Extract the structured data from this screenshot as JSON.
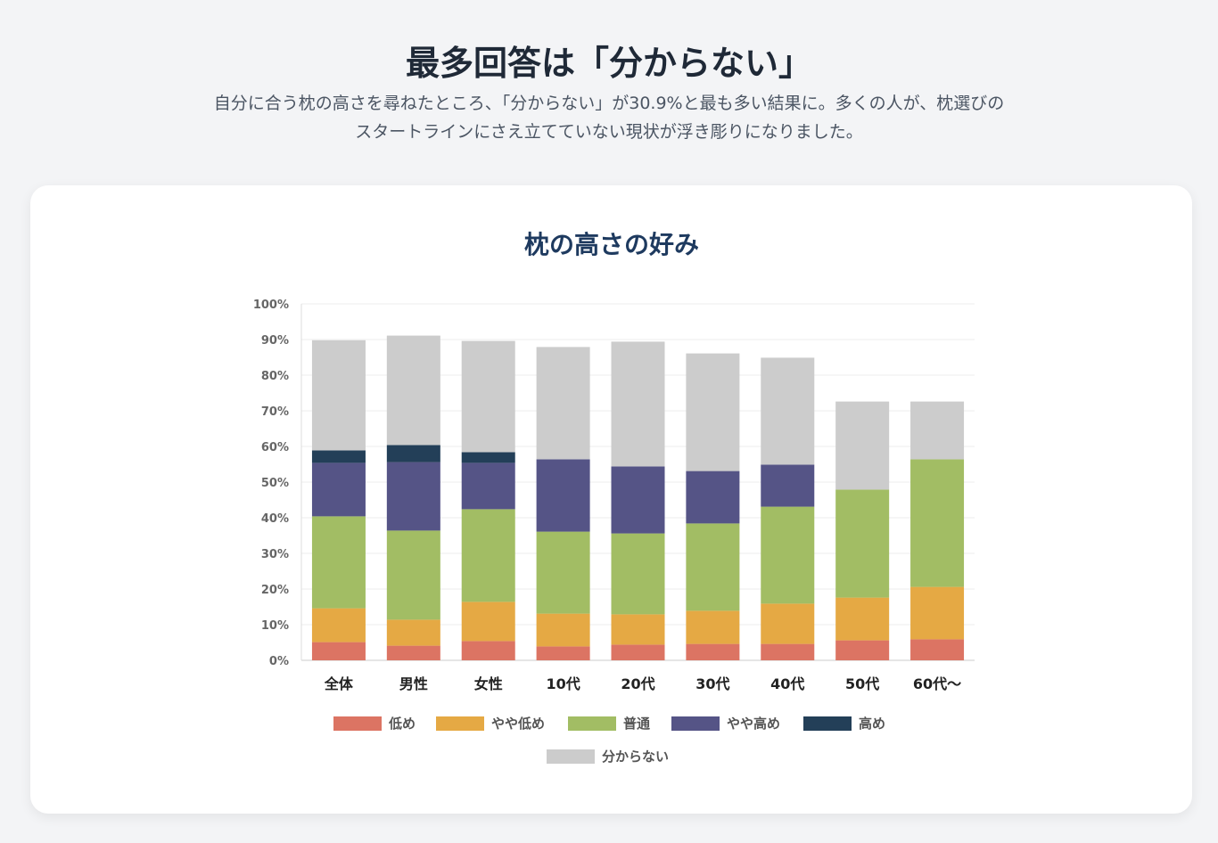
{
  "header": {
    "title": "最多回答は「分からない」",
    "description": "自分に合う枕の高さを尋ねたところ、「分からない」が30.9%と最も多い結果に。多くの人が、枕選びのスタートラインにさえ立てていない現状が浮き彫りになりました。"
  },
  "chart_data": {
    "type": "bar",
    "stacked": true,
    "title": "枕の高さの好み",
    "xlabel": "",
    "ylabel": "",
    "ylim": [
      0,
      100
    ],
    "yticks": [
      "0%",
      "10%",
      "20%",
      "30%",
      "40%",
      "50%",
      "60%",
      "70%",
      "80%",
      "90%",
      "100%"
    ],
    "grid": true,
    "legend_position": "bottom",
    "categories": [
      "全体",
      "男性",
      "女性",
      "10代",
      "20代",
      "30代",
      "40代",
      "50代",
      "60代〜"
    ],
    "series": [
      {
        "name": "低め",
        "color": "#dc7463",
        "values": [
          5.1,
          4.1,
          5.4,
          3.9,
          4.4,
          4.6,
          4.6,
          5.6,
          5.9
        ]
      },
      {
        "name": "やや低め",
        "color": "#e5a944",
        "values": [
          9.5,
          7.3,
          11.0,
          9.2,
          8.5,
          9.3,
          11.3,
          12.0,
          14.7
        ]
      },
      {
        "name": "普通",
        "color": "#a2bd64",
        "values": [
          25.8,
          25.0,
          26.0,
          23.0,
          22.7,
          24.5,
          27.2,
          30.3,
          35.8
        ]
      },
      {
        "name": "やや高め",
        "color": "#555486",
        "values": [
          15.0,
          19.2,
          13.0,
          20.3,
          18.8,
          14.7,
          11.8,
          0,
          0
        ]
      },
      {
        "name": "高め",
        "color": "#233f58",
        "values": [
          3.5,
          4.8,
          3.0,
          0,
          0,
          0,
          0,
          0,
          0
        ]
      },
      {
        "name": "分からない",
        "color": "#cccccc",
        "values": [
          30.9,
          30.7,
          31.2,
          31.5,
          35.0,
          33.0,
          30.0,
          24.7,
          16.2
        ]
      }
    ]
  }
}
